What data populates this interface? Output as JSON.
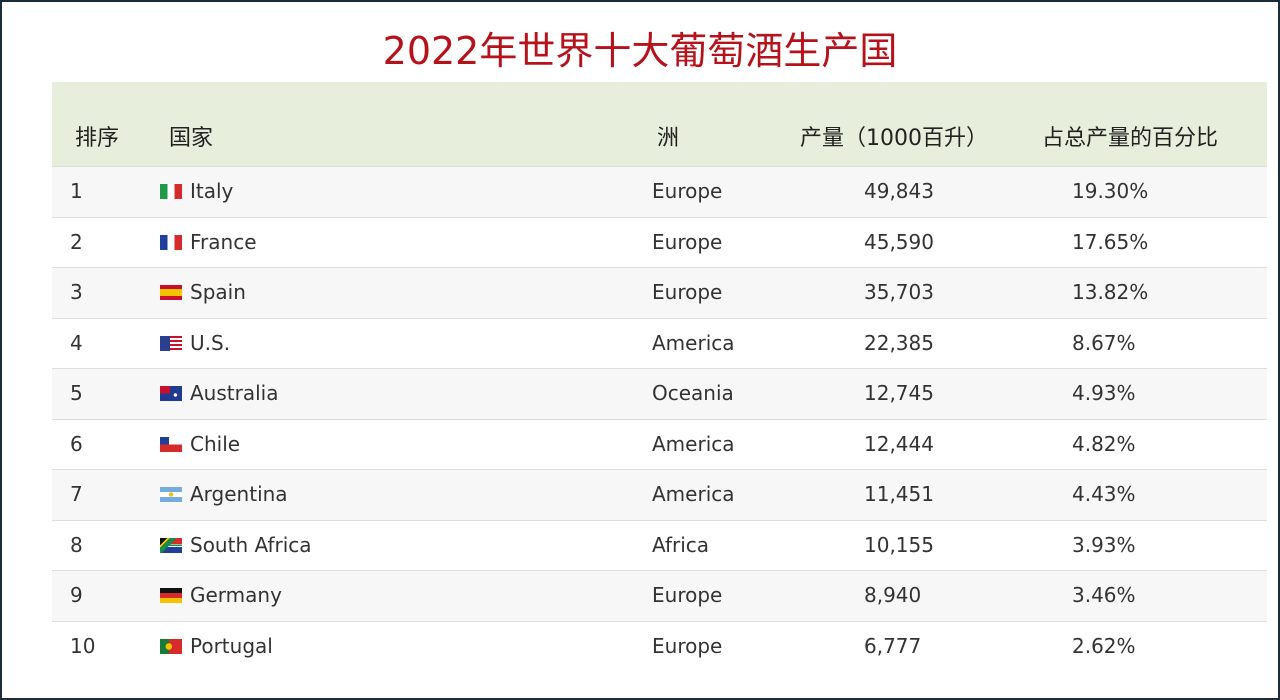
{
  "title": "2022年世界十大葡萄酒生产国",
  "table": {
    "headers": [
      "排序",
      "国家",
      "洲",
      "产量（1000百升）",
      "占总产量的百分比"
    ],
    "rows": [
      [
        "1",
        "Italy",
        "Europe",
        "49,843",
        "19.30%"
      ],
      [
        "2",
        "France",
        "Europe",
        "45,590",
        "17.65%"
      ],
      [
        "3",
        "Spain",
        "Europe",
        "35,703",
        "13.82%"
      ],
      [
        "4",
        "U.S.",
        "America",
        "22,385",
        "8.67%"
      ],
      [
        "5",
        "Australia",
        "Oceania",
        "12,745",
        "4.93%"
      ],
      [
        "6",
        "Chile",
        "America",
        "12,444",
        "4.82%"
      ],
      [
        "7",
        "Argentina",
        "America",
        "11,451",
        "4.43%"
      ],
      [
        "8",
        "South Africa",
        "Africa",
        "10,155",
        "3.93%"
      ],
      [
        "9",
        "Germany",
        "Europe",
        "8,940",
        "3.46%"
      ],
      [
        "10",
        "Portugal",
        "Europe",
        "6,777",
        "2.62%"
      ]
    ]
  }
}
